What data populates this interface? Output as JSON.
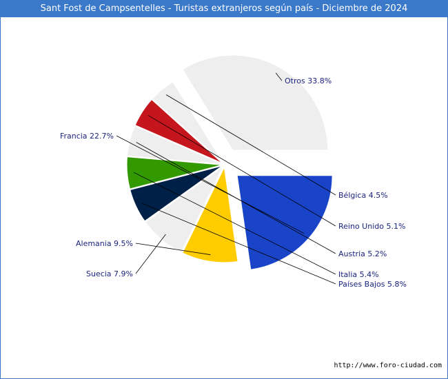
{
  "chart_data": {
    "type": "pie",
    "title": "Sant Fost de Campsentelles - Turistas extranjeros según país - Diciembre de 2024",
    "slices": [
      {
        "label": "Otros",
        "value": 33.8,
        "display": "Otros 33.8%",
        "color": "#eeeeee",
        "exploded": true
      },
      {
        "label": "Bélgica",
        "value": 4.5,
        "display": "Bélgica 4.5%",
        "color": "#eeeeee",
        "exploded": false
      },
      {
        "label": "Reino Unido",
        "value": 5.1,
        "display": "Reino Unido 5.1%",
        "color": "#c4161c",
        "exploded": false
      },
      {
        "label": "Austria",
        "value": 5.2,
        "display": "Austria 5.2%",
        "color": "#eeeeee",
        "exploded": false
      },
      {
        "label": "Italia",
        "value": 5.4,
        "display": "Italia 5.4%",
        "color": "#339900",
        "exploded": false
      },
      {
        "label": "Países Bajos",
        "value": 5.8,
        "display": "Países Bajos 5.8%",
        "color": "#002147",
        "exploded": false
      },
      {
        "label": "Suecia",
        "value": 7.9,
        "display": "Suecia 7.9%",
        "color": "#eeeeee",
        "exploded": false
      },
      {
        "label": "Alemania",
        "value": 9.5,
        "display": "Alemania 9.5%",
        "color": "#ffcc00",
        "exploded": false
      },
      {
        "label": "Francia",
        "value": 22.7,
        "display": "Francia 22.7%",
        "color": "#1a44c8",
        "exploded": true
      }
    ]
  },
  "source": "http://www.foro-ciudad.com"
}
